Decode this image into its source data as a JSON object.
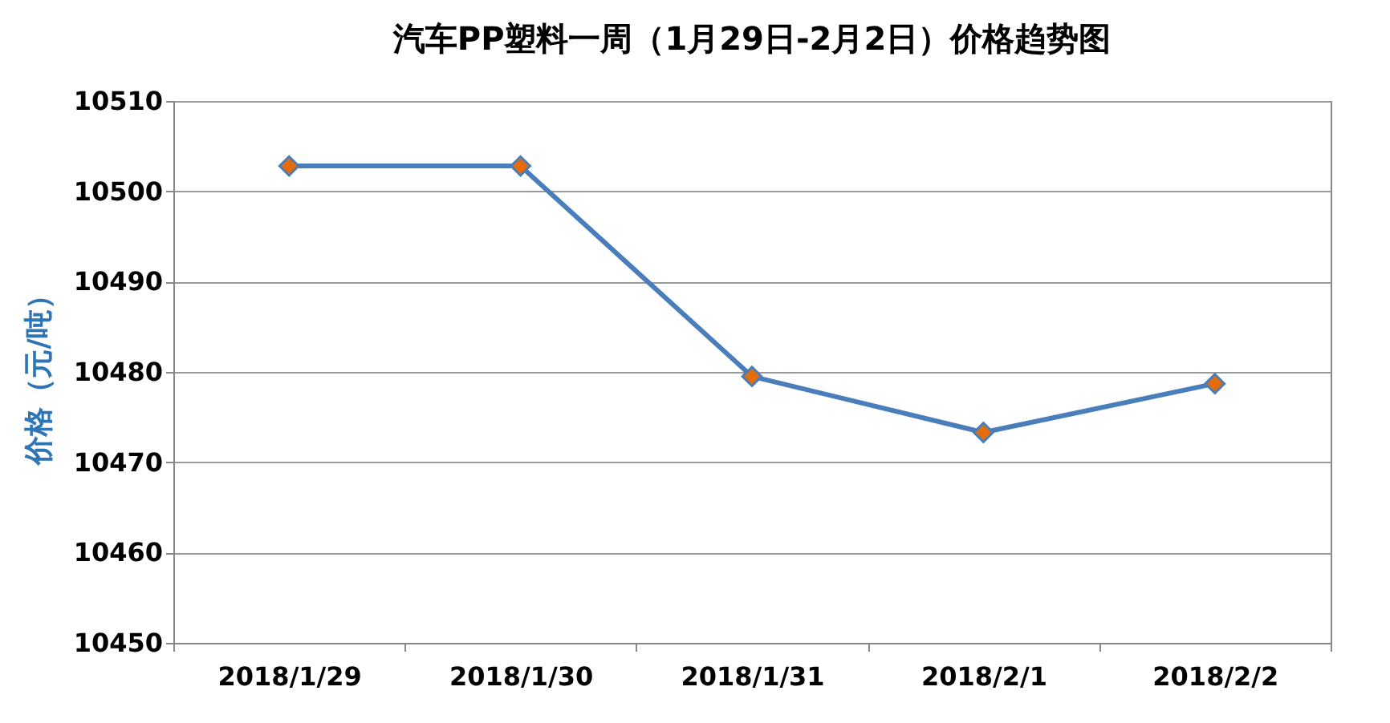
{
  "chart_data": {
    "type": "line",
    "title": "汽车PP塑料一周（1月29日-2月2日）价格趋势图",
    "ylabel": "价格（元/吨）",
    "categories": [
      "2018/1/29",
      "2018/1/30",
      "2018/1/31",
      "2018/2/1",
      "2018/2/2"
    ],
    "series": [
      {
        "color": "#4a7ebb",
        "values": [
          10502.8,
          10502.8,
          10479.5,
          10473.3,
          10478.7
        ]
      }
    ],
    "ylim": [
      10450,
      10510
    ],
    "yticks": [
      10450,
      10460,
      10470,
      10480,
      10490,
      10500,
      10510
    ],
    "grid": "y",
    "marker": "diamond"
  }
}
